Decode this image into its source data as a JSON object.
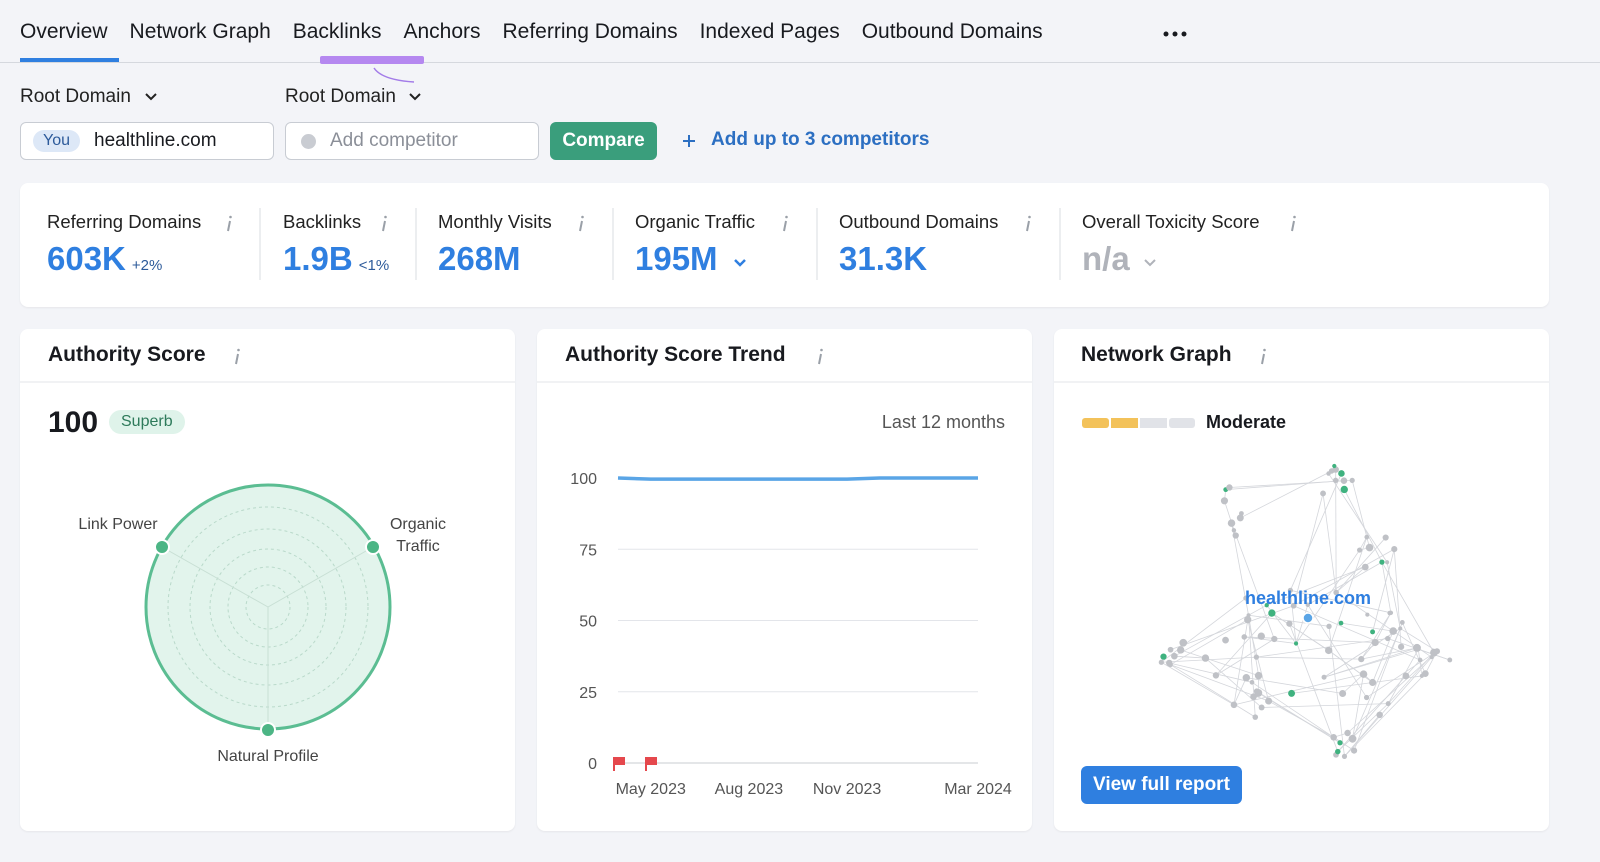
{
  "tabs": [
    "Overview",
    "Network Graph",
    "Backlinks",
    "Anchors",
    "Referring Domains",
    "Indexed Pages",
    "Outbound Domains"
  ],
  "domain_selectors": [
    "Root Domain",
    "Root Domain"
  ],
  "you_badge": "You",
  "domain": "healthline.com",
  "competitor_placeholder": "Add competitor",
  "compare_button": "Compare",
  "add_competitors": "Add up to 3 competitors",
  "metrics": [
    {
      "label": "Referring Domains",
      "value": "603K",
      "change": "+2%"
    },
    {
      "label": "Backlinks",
      "value": "1.9B",
      "change": "<1%"
    },
    {
      "label": "Monthly Visits",
      "value": "268M"
    },
    {
      "label": "Organic Traffic",
      "value": "195M"
    },
    {
      "label": "Outbound Domains",
      "value": "31.3K"
    },
    {
      "label": "Overall Toxicity Score",
      "value": "n/a"
    }
  ],
  "authority_score": {
    "title": "Authority Score",
    "score": "100",
    "rating": "Superb",
    "axes": [
      "Link Power",
      "Organic Traffic",
      "Natural Profile"
    ]
  },
  "chart_data": {
    "type": "line",
    "title": "Authority Score Trend",
    "subtitle": "Last 12 months",
    "categories": [
      null,
      "May 2023",
      null,
      null,
      "Aug 2023",
      null,
      null,
      "Nov 2023",
      null,
      null,
      null,
      "Mar 2024"
    ],
    "series": [
      {
        "color": "#5aa5e6",
        "values": [
          100,
          99.6,
          99.6,
          99.6,
          99.6,
          99.6,
          99.6,
          99.6,
          100,
          100,
          100,
          100
        ]
      }
    ],
    "ylim": [
      0,
      100
    ],
    "yticks": [
      0,
      25,
      50,
      75,
      100
    ],
    "grid": true
  },
  "network_graph": {
    "title": "Network Graph",
    "rating": "Moderate",
    "domain": "healthline.com",
    "button": "View full report"
  }
}
